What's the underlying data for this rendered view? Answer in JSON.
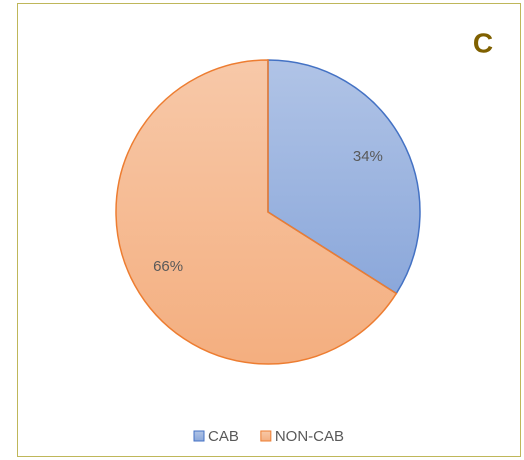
{
  "chart_data": {
    "type": "pie",
    "panel_label": "C",
    "categories": [
      "CAB",
      "NON-CAB"
    ],
    "values": [
      34,
      66
    ],
    "value_labels": [
      "34%",
      "66%"
    ],
    "colors": [
      "#4472c4",
      "#ed7d31"
    ],
    "legend": "bottom"
  }
}
